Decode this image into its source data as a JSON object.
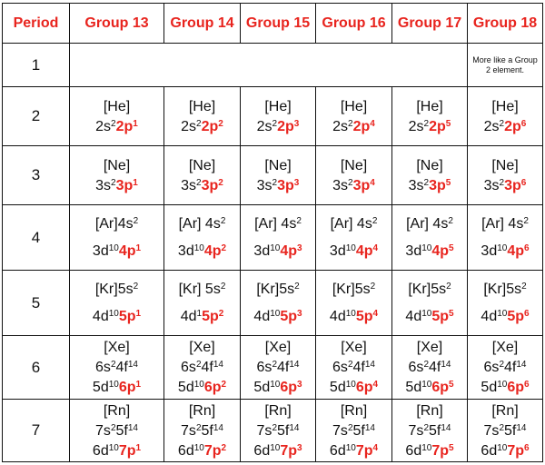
{
  "header": {
    "period": "Period",
    "groups": [
      "Group 13",
      "Group 14",
      "Group 15",
      "Group 16",
      "Group 17",
      "Group 18"
    ]
  },
  "accent_color": "#e8241e",
  "rows": [
    {
      "period": "1",
      "note": "More like a Group 2 element."
    },
    {
      "period": "2",
      "cells": [
        {
          "core": "[He]",
          "base": "2s",
          "sup1": "2",
          "outer": "2p",
          "osup": "1"
        },
        {
          "core": "[He]",
          "base": "2s",
          "sup1": "2",
          "outer": "2p",
          "osup": "2"
        },
        {
          "core": "[He]",
          "base": "2s",
          "sup1": "2",
          "outer": "2p",
          "osup": "3"
        },
        {
          "core": "[He]",
          "base": "2s",
          "sup1": "2",
          "outer": "2p",
          "osup": "4"
        },
        {
          "core": "[He]",
          "base": "2s",
          "sup1": "2",
          "outer": "2p",
          "osup": "5"
        },
        {
          "core": "[He]",
          "base": "2s",
          "sup1": "2",
          "outer": "2p",
          "osup": "6"
        }
      ]
    },
    {
      "period": "3",
      "cells": [
        {
          "core": "[Ne]",
          "base": "3s",
          "sup1": "2",
          "outer": "3p",
          "osup": "1"
        },
        {
          "core": "[Ne]",
          "base": "3s",
          "sup1": "2",
          "outer": "3p",
          "osup": "2"
        },
        {
          "core": "[Ne]",
          "base": "3s",
          "sup1": "2",
          "outer": "3p",
          "osup": "3"
        },
        {
          "core": "[Ne]",
          "base": "3s",
          "sup1": "2",
          "outer": "3p",
          "osup": "4"
        },
        {
          "core": "[Ne]",
          "base": "3s",
          "sup1": "2",
          "outer": "3p",
          "osup": "5"
        },
        {
          "core": "[Ne]",
          "base": "3s",
          "sup1": "2",
          "outer": "3p",
          "osup": "6"
        }
      ]
    },
    {
      "period": "4",
      "cells": [
        {
          "core": "[Ar]4s",
          "csup": "2",
          "base": "3d",
          "sup1": "10",
          "outer": "4p",
          "osup": "1"
        },
        {
          "core": "[Ar] 4s",
          "csup": "2",
          "base": "3d",
          "sup1": "10",
          "outer": "4p",
          "osup": "2"
        },
        {
          "core": "[Ar] 4s",
          "csup": "2",
          "base": "3d",
          "sup1": "10",
          "outer": "4p",
          "osup": "3"
        },
        {
          "core": "[Ar] 4s",
          "csup": "2",
          "base": "3d",
          "sup1": "10",
          "outer": "4p",
          "osup": "4"
        },
        {
          "core": "[Ar] 4s",
          "csup": "2",
          "base": "3d",
          "sup1": "10",
          "outer": "4p",
          "osup": "5"
        },
        {
          "core": "[Ar] 4s",
          "csup": "2",
          "base": "3d",
          "sup1": "10",
          "outer": "4p",
          "osup": "6"
        }
      ]
    },
    {
      "period": "5",
      "cells": [
        {
          "core": "[Kr]5s",
          "csup": "2",
          "base": "4d",
          "sup1": "10",
          "outer": "5p",
          "osup": "1"
        },
        {
          "core": "[Kr] 5s",
          "csup": "2",
          "base": "4d",
          "sup1": "1",
          "outer": "5p",
          "osup": "2"
        },
        {
          "core": "[Kr]5s",
          "csup": "2",
          "base": "4d",
          "sup1": "10",
          "outer": "5p",
          "osup": "3"
        },
        {
          "core": "[Kr]5s",
          "csup": "2",
          "base": "4d",
          "sup1": "10",
          "outer": "5p",
          "osup": "4"
        },
        {
          "core": "[Kr]5s",
          "csup": "2",
          "base": "4d",
          "sup1": "10",
          "outer": "5p",
          "osup": "5"
        },
        {
          "core": "[Kr]5s",
          "csup": "2",
          "base": "4d",
          "sup1": "10",
          "outer": "5p",
          "osup": "6"
        }
      ]
    },
    {
      "period": "6",
      "cells": [
        {
          "core": "[Xe]",
          "mid": "6s",
          "msup": "2",
          "mid2": "4f",
          "msup2": "14",
          "base": "5d",
          "sup1": "10",
          "outer": "6p",
          "osup": "1"
        },
        {
          "core": "[Xe]",
          "mid": "6s",
          "msup": "2",
          "mid2": "4f",
          "msup2": "14",
          "base": "5d",
          "sup1": "10",
          "outer": "6p",
          "osup": "2"
        },
        {
          "core": "[Xe]",
          "mid": "6s",
          "msup": "2",
          "mid2": "4f",
          "msup2": "14",
          "base": "5d",
          "sup1": "10",
          "outer": "6p",
          "osup": "3"
        },
        {
          "core": "[Xe]",
          "mid": "6s",
          "msup": "2",
          "mid2": "4f",
          "msup2": "14",
          "base": "5d",
          "sup1": "10",
          "outer": "6p",
          "osup": "4"
        },
        {
          "core": "[Xe]",
          "mid": "6s",
          "msup": "2",
          "mid2": "4f",
          "msup2": "14",
          "base": "5d",
          "sup1": "10",
          "outer": "6p",
          "osup": "5"
        },
        {
          "core": "[Xe]",
          "mid": "6s",
          "msup": "2",
          "mid2": "4f",
          "msup2": "14",
          "base": "5d",
          "sup1": "10",
          "outer": "6p",
          "osup": "6"
        }
      ]
    },
    {
      "period": "7",
      "cells": [
        {
          "core": "[Rn]",
          "mid": "7s",
          "msup": "2",
          "mid2": "5f",
          "msup2": "14",
          "base": "6d",
          "sup1": "10",
          "outer": "7p",
          "osup": "1"
        },
        {
          "core": "[Rn]",
          "mid": "7s",
          "msup": "2",
          "mid2": "5f",
          "msup2": "14",
          "base": "6d",
          "sup1": "10",
          "outer": "7p",
          "osup": "2"
        },
        {
          "core": "[Rn]",
          "mid": "7s",
          "msup": "2",
          "mid2": "5f",
          "msup2": "14",
          "base": "6d",
          "sup1": "10",
          "outer": "7p",
          "osup": "3"
        },
        {
          "core": "[Rn]",
          "mid": "7s",
          "msup": "2",
          "mid2": "5f",
          "msup2": "14",
          "base": "6d",
          "sup1": "10",
          "outer": "7p",
          "osup": "4"
        },
        {
          "core": "[Rn]",
          "mid": "7s",
          "msup": "2",
          "mid2": "5f",
          "msup2": "14",
          "base": "6d",
          "sup1": "10",
          "outer": "7p",
          "osup": "5"
        },
        {
          "core": "[Rn]",
          "mid": "7s",
          "msup": "2",
          "mid2": "5f",
          "msup2": "14",
          "base": "6d",
          "sup1": "10",
          "outer": "7p",
          "osup": "6"
        }
      ]
    }
  ]
}
